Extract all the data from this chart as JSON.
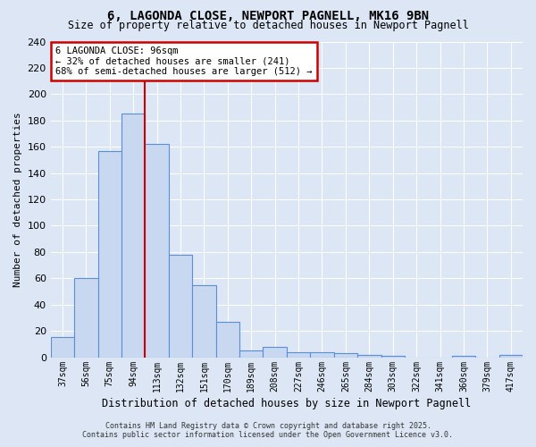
{
  "title_line1": "6, LAGONDA CLOSE, NEWPORT PAGNELL, MK16 9BN",
  "title_line2": "Size of property relative to detached houses in Newport Pagnell",
  "xlabel": "Distribution of detached houses by size in Newport Pagnell",
  "ylabel": "Number of detached properties",
  "categories": [
    "37sqm",
    "56sqm",
    "75sqm",
    "94sqm",
    "113sqm",
    "132sqm",
    "151sqm",
    "170sqm",
    "189sqm",
    "208sqm",
    "227sqm",
    "246sqm",
    "265sqm",
    "284sqm",
    "303sqm",
    "322sqm",
    "341sqm",
    "360sqm",
    "379sqm",
    "417sqm"
  ],
  "values": [
    15,
    60,
    157,
    185,
    162,
    78,
    55,
    27,
    5,
    8,
    4,
    4,
    3,
    2,
    1,
    0,
    0,
    1,
    0,
    2
  ],
  "bar_color": "#c8d8f0",
  "bar_edge_color": "#5b8dd9",
  "background_color": "#dce6f5",
  "grid_color": "#ffffff",
  "marker_index": 3,
  "marker_label": "6 LAGONDA CLOSE: 96sqm",
  "annotation_line2": "← 32% of detached houses are smaller (241)",
  "annotation_line3": "68% of semi-detached houses are larger (512) →",
  "annotation_box_color": "#ffffff",
  "annotation_border_color": "#cc0000",
  "vline_color": "#cc0000",
  "ylim": [
    0,
    240
  ],
  "yticks": [
    0,
    20,
    40,
    60,
    80,
    100,
    120,
    140,
    160,
    180,
    200,
    220,
    240
  ],
  "footer_line1": "Contains HM Land Registry data © Crown copyright and database right 2025.",
  "footer_line2": "Contains public sector information licensed under the Open Government Licence v3.0."
}
